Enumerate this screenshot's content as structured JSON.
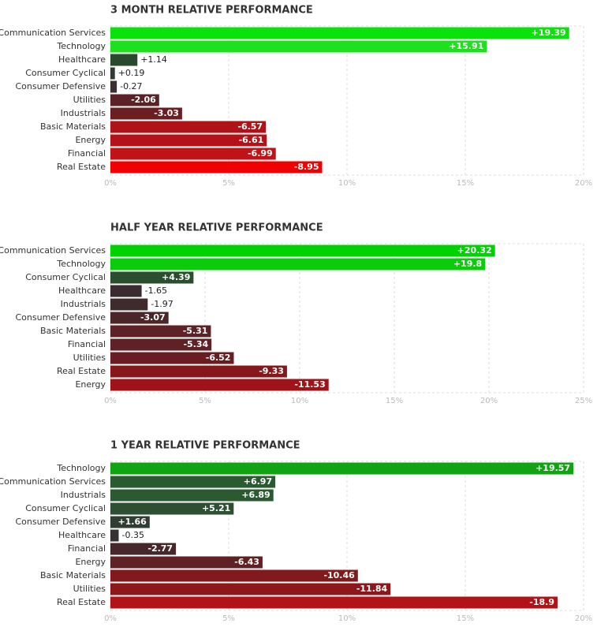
{
  "chart_data": [
    {
      "type": "bar",
      "title": "3 MONTH RELATIVE PERFORMANCE",
      "categories": [
        "Communication Services",
        "Technology",
        "Healthcare",
        "Consumer Cyclical",
        "Consumer Defensive",
        "Utilities",
        "Industrials",
        "Basic Materials",
        "Energy",
        "Financial",
        "Real Estate"
      ],
      "values": [
        19.39,
        15.91,
        1.14,
        0.19,
        -0.27,
        -2.06,
        -3.03,
        -6.57,
        -6.61,
        -6.99,
        -8.95
      ],
      "value_labels": [
        "+19.39",
        "+15.91",
        "+1.14",
        "+0.19",
        "-0.27",
        "-2.06",
        "-3.03",
        "-6.57",
        "-6.61",
        "-6.99",
        "-8.95"
      ],
      "colors": [
        "#0be10b",
        "#1ee01e",
        "#2a4a2e",
        "#2f3b32",
        "#3b2f2f",
        "#5a2226",
        "#6a1e22",
        "#b01317",
        "#b31318",
        "#c01217",
        "#f00000"
      ],
      "xlim": [
        0,
        20
      ],
      "xticks": [
        {
          "value": 0,
          "label": "0%"
        },
        {
          "value": 5,
          "label": "5%"
        },
        {
          "value": 10,
          "label": "10%"
        },
        {
          "value": 15,
          "label": "15%"
        },
        {
          "value": 20,
          "label": "20%"
        }
      ],
      "grid": true
    },
    {
      "type": "bar",
      "title": "HALF YEAR RELATIVE PERFORMANCE",
      "categories": [
        "Communication Services",
        "Technology",
        "Consumer Cyclical",
        "Healthcare",
        "Industrials",
        "Consumer Defensive",
        "Basic Materials",
        "Financial",
        "Utilities",
        "Real Estate",
        "Energy"
      ],
      "values": [
        20.32,
        19.8,
        4.39,
        -1.65,
        -1.97,
        -3.07,
        -5.31,
        -5.34,
        -6.52,
        -9.33,
        -11.53
      ],
      "value_labels": [
        "+20.32",
        "+19.8",
        "+4.39",
        "-1.65",
        "-1.97",
        "-3.07",
        "-5.31",
        "-5.34",
        "-6.52",
        "-9.33",
        "-11.53"
      ],
      "colors": [
        "#00d100",
        "#0bcc0b",
        "#2a4e2e",
        "#3a2c2e",
        "#3e2b2c",
        "#4a2628",
        "#5e2125",
        "#5f2125",
        "#6a1d21",
        "#86181c",
        "#9e1418"
      ],
      "xlim": [
        0,
        25
      ],
      "xticks": [
        {
          "value": 0,
          "label": "0%"
        },
        {
          "value": 5,
          "label": "5%"
        },
        {
          "value": 10,
          "label": "10%"
        },
        {
          "value": 15,
          "label": "15%"
        },
        {
          "value": 20,
          "label": "20%"
        },
        {
          "value": 25,
          "label": "25%"
        }
      ],
      "grid": true
    },
    {
      "type": "bar",
      "title": "1 YEAR RELATIVE PERFORMANCE",
      "categories": [
        "Technology",
        "Communication Services",
        "Industrials",
        "Consumer Cyclical",
        "Consumer Defensive",
        "Healthcare",
        "Financial",
        "Energy",
        "Basic Materials",
        "Utilities",
        "Real Estate"
      ],
      "values": [
        19.57,
        6.97,
        6.89,
        5.21,
        1.66,
        -0.35,
        -2.77,
        -6.43,
        -10.46,
        -11.84,
        -18.9
      ],
      "value_labels": [
        "+19.57",
        "+6.97",
        "+6.89",
        "+5.21",
        "+1.66",
        "-0.35",
        "-2.77",
        "-6.43",
        "-10.46",
        "-11.84",
        "-18.9"
      ],
      "colors": [
        "#12a312",
        "#2a5a30",
        "#2b5a31",
        "#2d5032",
        "#2f3d32",
        "#363031",
        "#46282a",
        "#602125",
        "#82191d",
        "#8d171b",
        "#b21317"
      ],
      "xlim": [
        0,
        20
      ],
      "xticks": [
        {
          "value": 0,
          "label": "0%"
        },
        {
          "value": 5,
          "label": "5%"
        },
        {
          "value": 10,
          "label": "10%"
        },
        {
          "value": 15,
          "label": "15%"
        },
        {
          "value": 20,
          "label": "20%"
        }
      ],
      "grid": true
    }
  ]
}
